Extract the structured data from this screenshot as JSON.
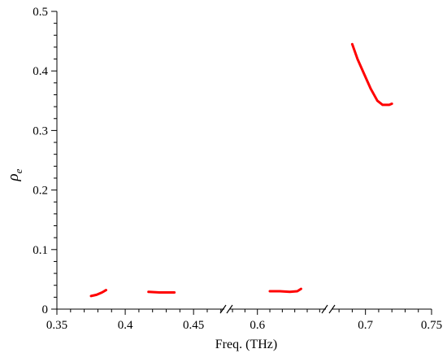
{
  "chart_data": {
    "type": "line",
    "xlabel": "Freq. (THz)",
    "ylabel": "ρ",
    "ylabel_subscript": "e",
    "ylim": [
      0,
      0.5
    ],
    "yticks": [
      0,
      0.1,
      0.2,
      0.3,
      0.4,
      0.5
    ],
    "ytick_labels": [
      "0",
      "0.1",
      "0.2",
      "0.3",
      "0.4",
      "0.5"
    ],
    "x_axis": "broken",
    "x_segments": [
      {
        "range": [
          0.35,
          0.4725
        ],
        "ticks": [
          0.35,
          0.4,
          0.45
        ],
        "tick_labels": [
          "0.35",
          "0.4",
          "0.45"
        ]
      },
      {
        "range": [
          0.578,
          0.655
        ],
        "ticks": [
          0.6
        ],
        "tick_labels": [
          "0.6"
        ]
      },
      {
        "range": [
          0.675,
          0.75
        ],
        "ticks": [
          0.7,
          0.75
        ],
        "tick_labels": [
          "0.7",
          "0.75"
        ]
      }
    ],
    "grid": false,
    "line_color": "#ff0000",
    "series": [
      {
        "points": [
          [
            0.375,
            0.022
          ],
          [
            0.379,
            0.024
          ],
          [
            0.383,
            0.028
          ],
          [
            0.386,
            0.032
          ]
        ]
      },
      {
        "points": [
          [
            0.417,
            0.029
          ],
          [
            0.425,
            0.028
          ],
          [
            0.43,
            0.028
          ],
          [
            0.436,
            0.028
          ]
        ]
      },
      {
        "points": [
          [
            0.61,
            0.03
          ],
          [
            0.618,
            0.03
          ],
          [
            0.626,
            0.029
          ],
          [
            0.632,
            0.03
          ],
          [
            0.635,
            0.034
          ]
        ]
      },
      {
        "points": [
          [
            0.69,
            0.445
          ],
          [
            0.694,
            0.42
          ],
          [
            0.699,
            0.395
          ],
          [
            0.704,
            0.37
          ],
          [
            0.709,
            0.35
          ],
          [
            0.713,
            0.343
          ],
          [
            0.718,
            0.343
          ],
          [
            0.72,
            0.345
          ]
        ]
      }
    ]
  }
}
